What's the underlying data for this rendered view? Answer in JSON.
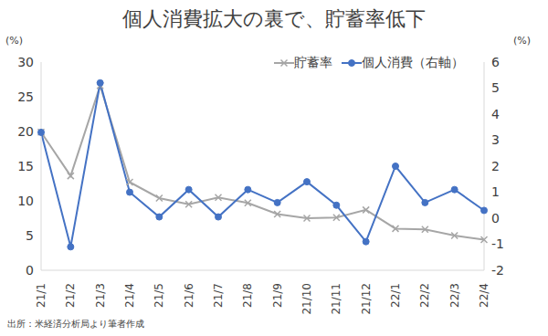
{
  "chart_data": {
    "type": "line",
    "title": "個人消費拡大の裏で、貯蓄率低下",
    "y_label": "(%)",
    "y2_label": "(%)",
    "source": "出所：米経済分析局より筆者作成",
    "categories": [
      "21/1",
      "21/2",
      "21/3",
      "21/4",
      "21/5",
      "21/6",
      "21/7",
      "21/8",
      "21/9",
      "21/10",
      "21/11",
      "21/12",
      "22/1",
      "22/2",
      "22/3",
      "22/4"
    ],
    "series": [
      {
        "name": "貯蓄率",
        "color": "#a6a6a6",
        "marker": "x",
        "axis": "y",
        "values": [
          19.9,
          13.6,
          26.6,
          12.7,
          10.4,
          9.5,
          10.5,
          9.7,
          8.1,
          7.5,
          7.6,
          8.7,
          6.0,
          5.9,
          5.0,
          4.4
        ]
      },
      {
        "name": "個人消費（右軸）",
        "color": "#4472c4",
        "marker": "circle",
        "axis": "y2",
        "values": [
          3.3,
          -1.1,
          5.2,
          1.0,
          0.05,
          1.1,
          0.05,
          1.1,
          0.6,
          1.4,
          0.5,
          -0.9,
          2.0,
          0.6,
          1.1,
          0.3
        ]
      }
    ],
    "ylim": [
      0,
      30
    ],
    "yticks": [
      0,
      5,
      10,
      15,
      20,
      25,
      30
    ],
    "y2lim": [
      -2,
      6
    ],
    "y2ticks": [
      -2,
      -1,
      0,
      1,
      2,
      3,
      4,
      5,
      6
    ],
    "grid": false,
    "legend": "upper right"
  }
}
